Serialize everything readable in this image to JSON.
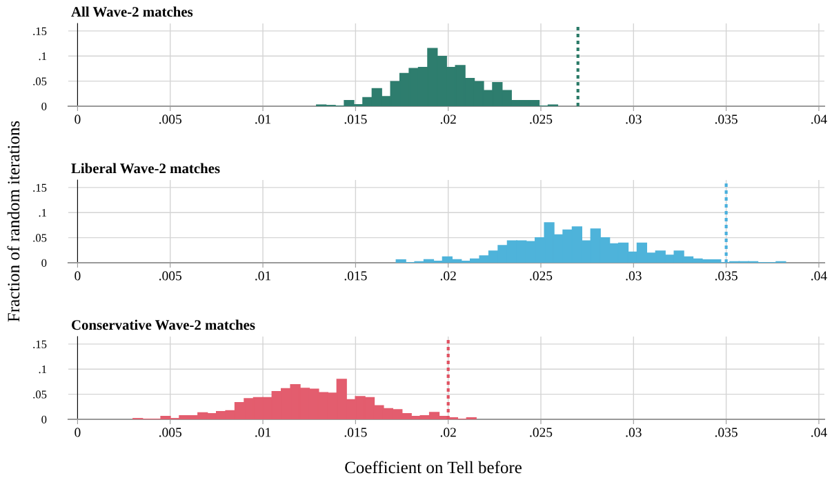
{
  "chart_data": [
    {
      "type": "histogram",
      "title": "All Wave-2 matches",
      "bins": [
        0.0129,
        0.0134,
        0.0139,
        0.0144,
        0.0149,
        0.0154,
        0.0159,
        0.0164,
        0.0169,
        0.0174,
        0.0179,
        0.0184,
        0.0189,
        0.0194,
        0.0199,
        0.0204,
        0.0209,
        0.0214,
        0.0219,
        0.0224,
        0.0229,
        0.0234,
        0.0239,
        0.0244,
        0.0249,
        0.0254,
        0.0259
      ],
      "values": [
        0.0023,
        0.0014,
        0,
        0.011,
        0.003,
        0.017,
        0.035,
        0.019,
        0.049,
        0.065,
        0.075,
        0.077,
        0.115,
        0.099,
        0.077,
        0.081,
        0.055,
        0.049,
        0.031,
        0.047,
        0.031,
        0.011,
        0.011,
        0.011,
        0,
        0.0023
      ],
      "color": "#2e7d6e",
      "xlim": [
        -0.0005,
        0.0403
      ],
      "ylim": [
        0,
        0.165
      ],
      "xticks": [
        0,
        {
          "value": 0.005,
          "label": ".005"
        },
        {
          "value": 0.01,
          "label": ".01"
        },
        {
          "value": 0.015,
          "label": ".015"
        },
        {
          "value": 0.02,
          "label": ".02"
        },
        {
          "value": 0.025,
          "label": ".025"
        },
        {
          "value": 0.03,
          "label": ".03"
        },
        {
          "value": 0.035,
          "label": ".035"
        },
        {
          "value": 0.04,
          "label": ".04"
        }
      ],
      "yticks": [
        0,
        {
          "value": 0.05,
          "label": ".05"
        },
        {
          "value": 0.1,
          "label": ".1"
        },
        {
          "value": 0.15,
          "label": ".15"
        }
      ],
      "ref_lines": [
        {
          "axis": "x",
          "value": 0.027,
          "color": "#2a7a67",
          "line_style": "dotted"
        }
      ],
      "grid": true
    },
    {
      "type": "histogram",
      "title": "Liberal Wave-2 matches",
      "ylabel": "Fraction of random iterations",
      "bins": [
        0.0172,
        0.0177,
        0.0182,
        0.0187,
        0.0192,
        0.0197,
        0.0202,
        0.0207,
        0.0212,
        0.0217,
        0.0222,
        0.0227,
        0.0232,
        0.0237,
        0.0242,
        0.0247,
        0.0252,
        0.0257,
        0.0262,
        0.0267,
        0.0272,
        0.0277,
        0.0282,
        0.0287,
        0.0292,
        0.0297,
        0.0302,
        0.0307,
        0.0312,
        0.0317,
        0.0322,
        0.0327,
        0.0332,
        0.0337,
        0.0342,
        0.0347,
        0.0352,
        0.0357,
        0.0362,
        0.0367,
        0.0372,
        0.0377,
        0.0382
      ],
      "values": [
        0.0056,
        0,
        0.0019,
        0.006,
        0.003,
        0.0116,
        0.006,
        0.003,
        0.0074,
        0.0134,
        0.023,
        0.034,
        0.0435,
        0.0435,
        0.042,
        0.0495,
        0.0796,
        0.0556,
        0.065,
        0.0713,
        0.0435,
        0.067,
        0.0495,
        0.0375,
        0.039,
        0.021,
        0.039,
        0.019,
        0.023,
        0.015,
        0.023,
        0.0116,
        0.0074,
        0.0056,
        0.0056,
        0,
        0.0019,
        0.0019,
        0.0019,
        0,
        0,
        0.0019
      ],
      "color": "#4eb3da",
      "xlim": [
        -0.0005,
        0.0403
      ],
      "ylim": [
        0,
        0.165
      ],
      "xticks": [
        0,
        {
          "value": 0.005,
          "label": ".005"
        },
        {
          "value": 0.01,
          "label": ".01"
        },
        {
          "value": 0.015,
          "label": ".015"
        },
        {
          "value": 0.02,
          "label": ".02"
        },
        {
          "value": 0.025,
          "label": ".025"
        },
        {
          "value": 0.03,
          "label": ".03"
        },
        {
          "value": 0.035,
          "label": ".035"
        },
        {
          "value": 0.04,
          "label": ".04"
        }
      ],
      "yticks": [
        0,
        {
          "value": 0.05,
          "label": ".05"
        },
        {
          "value": 0.1,
          "label": ".1"
        },
        {
          "value": 0.15,
          "label": ".15"
        }
      ],
      "ref_lines": [
        {
          "axis": "x",
          "value": 0.035,
          "color": "#4ab0dd",
          "line_style": "dotted"
        }
      ],
      "grid": true
    },
    {
      "type": "histogram",
      "title": "Conservative Wave-2 matches",
      "xlabel": "Coefficient on Tell before",
      "bins": [
        0.003,
        0.0035,
        0.004,
        0.0045,
        0.005,
        0.0055,
        0.006,
        0.0065,
        0.007,
        0.0075,
        0.008,
        0.0085,
        0.009,
        0.0095,
        0.01,
        0.0105,
        0.011,
        0.0115,
        0.012,
        0.0125,
        0.013,
        0.0135,
        0.014,
        0.0145,
        0.015,
        0.0155,
        0.016,
        0.0165,
        0.017,
        0.0175,
        0.018,
        0.0185,
        0.019,
        0.0195,
        0.02,
        0.0205,
        0.021,
        0.0215
      ],
      "values": [
        0.0014,
        0,
        0,
        0.0056,
        0.0014,
        0.007,
        0.007,
        0.013,
        0.011,
        0.0153,
        0.017,
        0.033,
        0.041,
        0.043,
        0.043,
        0.055,
        0.061,
        0.069,
        0.0616,
        0.06,
        0.053,
        0.052,
        0.0796,
        0.039,
        0.045,
        0.043,
        0.027,
        0.021,
        0.019,
        0.0111,
        0.0056,
        0.007,
        0.0134,
        0.0056,
        0.003,
        0,
        0.003
      ],
      "color": "#e35d6e",
      "xlim": [
        -0.0005,
        0.0403
      ],
      "ylim": [
        0,
        0.165
      ],
      "xticks": [
        0,
        {
          "value": 0.005,
          "label": ".005"
        },
        {
          "value": 0.01,
          "label": ".01"
        },
        {
          "value": 0.015,
          "label": ".015"
        },
        {
          "value": 0.02,
          "label": ".02"
        },
        {
          "value": 0.025,
          "label": ".025"
        },
        {
          "value": 0.03,
          "label": ".03"
        },
        {
          "value": 0.035,
          "label": ".035"
        },
        {
          "value": 0.04,
          "label": ".04"
        }
      ],
      "yticks": [
        0,
        {
          "value": 0.05,
          "label": ".05"
        },
        {
          "value": 0.1,
          "label": ".1"
        },
        {
          "value": 0.15,
          "label": ".15"
        }
      ],
      "ref_lines": [
        {
          "axis": "x",
          "value": 0.02,
          "color": "#e05262",
          "line_style": "dotted"
        }
      ],
      "grid": true
    }
  ]
}
